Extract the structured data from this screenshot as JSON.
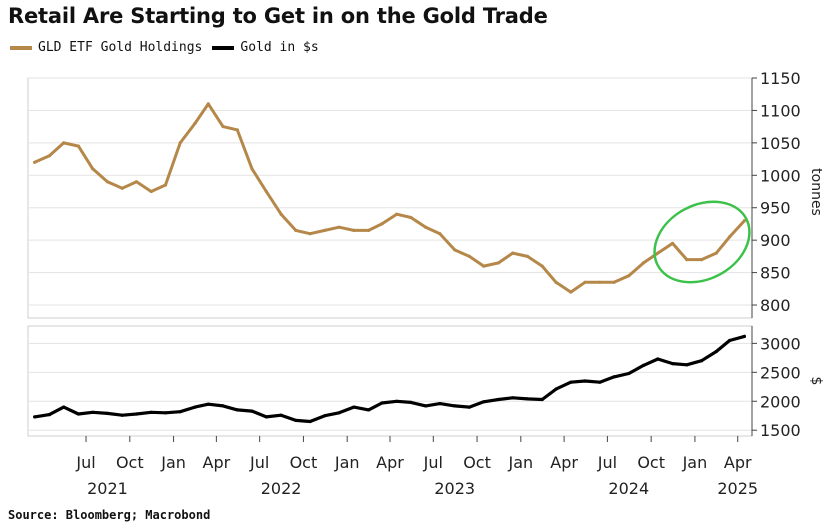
{
  "title": "Retail Are Starting to Get in on the Gold Trade",
  "source": "Source: Bloomberg; Macrobond",
  "colors": {
    "gld": "#b5884a",
    "gold": "#000000",
    "highlight": "#3cc24a",
    "grid": "#e3e3e3"
  },
  "chart_data": [
    {
      "type": "line",
      "panel": "top",
      "ylabel": "tonnes",
      "ylim": [
        780,
        1150
      ],
      "yticks": [
        800,
        850,
        900,
        950,
        1000,
        1050,
        1100,
        1150
      ],
      "series": [
        {
          "name": "GLD ETF Gold Holdings",
          "x": [
            "2021-03",
            "2021-04",
            "2021-05",
            "2021-06",
            "2021-07",
            "2021-08",
            "2021-09",
            "2021-10",
            "2021-11",
            "2021-12",
            "2022-01",
            "2022-02",
            "2022-03",
            "2022-04",
            "2022-05",
            "2022-06",
            "2022-07",
            "2022-08",
            "2022-09",
            "2022-10",
            "2022-11",
            "2022-12",
            "2023-01",
            "2023-02",
            "2023-03",
            "2023-04",
            "2023-05",
            "2023-06",
            "2023-07",
            "2023-08",
            "2023-09",
            "2023-10",
            "2023-11",
            "2023-12",
            "2024-01",
            "2024-02",
            "2024-03",
            "2024-04",
            "2024-05",
            "2024-06",
            "2024-07",
            "2024-08",
            "2024-09",
            "2024-10",
            "2024-11",
            "2024-12",
            "2025-01",
            "2025-02",
            "2025-03",
            "2025-04"
          ],
          "values": [
            1020,
            1030,
            1050,
            1045,
            1010,
            990,
            980,
            990,
            975,
            985,
            1050,
            1080,
            1110,
            1075,
            1070,
            1010,
            975,
            940,
            915,
            910,
            915,
            920,
            915,
            915,
            925,
            940,
            935,
            920,
            910,
            885,
            875,
            860,
            865,
            880,
            875,
            860,
            835,
            820,
            835,
            835,
            835,
            845,
            865,
            880,
            895,
            870,
            870,
            880,
            905,
            930
          ]
        }
      ]
    },
    {
      "type": "line",
      "panel": "bottom",
      "ylabel": "$",
      "ylim": [
        1400,
        3300
      ],
      "yticks": [
        1500,
        2000,
        2500,
        3000
      ],
      "series": [
        {
          "name": "Gold in $s",
          "x": [
            "2021-03",
            "2021-04",
            "2021-05",
            "2021-06",
            "2021-07",
            "2021-08",
            "2021-09",
            "2021-10",
            "2021-11",
            "2021-12",
            "2022-01",
            "2022-02",
            "2022-03",
            "2022-04",
            "2022-05",
            "2022-06",
            "2022-07",
            "2022-08",
            "2022-09",
            "2022-10",
            "2022-11",
            "2022-12",
            "2023-01",
            "2023-02",
            "2023-03",
            "2023-04",
            "2023-05",
            "2023-06",
            "2023-07",
            "2023-08",
            "2023-09",
            "2023-10",
            "2023-11",
            "2023-12",
            "2024-01",
            "2024-02",
            "2024-03",
            "2024-04",
            "2024-05",
            "2024-06",
            "2024-07",
            "2024-08",
            "2024-09",
            "2024-10",
            "2024-11",
            "2024-12",
            "2025-01",
            "2025-02",
            "2025-03",
            "2025-04"
          ],
          "values": [
            1730,
            1770,
            1900,
            1780,
            1810,
            1790,
            1760,
            1780,
            1810,
            1800,
            1820,
            1900,
            1950,
            1920,
            1850,
            1830,
            1730,
            1760,
            1670,
            1650,
            1750,
            1800,
            1900,
            1850,
            1970,
            2000,
            1980,
            1920,
            1960,
            1920,
            1900,
            1990,
            2030,
            2060,
            2040,
            2030,
            2210,
            2330,
            2350,
            2330,
            2420,
            2480,
            2620,
            2730,
            2650,
            2630,
            2700,
            2860,
            3050,
            3120
          ]
        }
      ]
    }
  ],
  "x_axis": {
    "ticks": [
      {
        "label": "Jul",
        "date": "2021-07-01"
      },
      {
        "label": "Oct",
        "date": "2021-10-01"
      },
      {
        "label": "Jan",
        "date": "2022-01-01"
      },
      {
        "label": "Apr",
        "date": "2022-04-01"
      },
      {
        "label": "Jul",
        "date": "2022-07-01"
      },
      {
        "label": "Oct",
        "date": "2022-10-01"
      },
      {
        "label": "Jan",
        "date": "2023-01-01"
      },
      {
        "label": "Apr",
        "date": "2023-04-01"
      },
      {
        "label": "Jul",
        "date": "2023-07-01"
      },
      {
        "label": "Oct",
        "date": "2023-10-01"
      },
      {
        "label": "Jan",
        "date": "2024-01-01"
      },
      {
        "label": "Apr",
        "date": "2024-04-01"
      },
      {
        "label": "Jul",
        "date": "2024-07-01"
      },
      {
        "label": "Oct",
        "date": "2024-10-01"
      },
      {
        "label": "Jan",
        "date": "2025-01-01"
      },
      {
        "label": "Apr",
        "date": "2025-04-01"
      }
    ],
    "years": [
      {
        "label": "2021",
        "date": "2021-08-15"
      },
      {
        "label": "2022",
        "date": "2022-08-15"
      },
      {
        "label": "2023",
        "date": "2023-08-15"
      },
      {
        "label": "2024",
        "date": "2024-08-15"
      },
      {
        "label": "2025",
        "date": "2025-04-01"
      }
    ]
  },
  "annotation": {
    "shape": "ellipse",
    "color": "#3cc24a",
    "around": "GLD ETF Gold Holdings, late 2024 to 2025"
  }
}
